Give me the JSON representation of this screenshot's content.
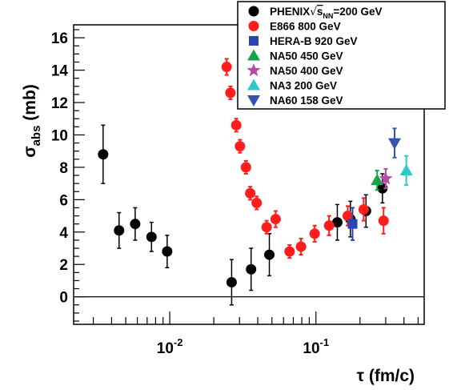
{
  "chart_data": {
    "type": "scatter",
    "x_scale": "log",
    "xlim": [
      0.0022,
      0.55
    ],
    "ylim": [
      -1.7,
      16.8
    ],
    "grid": false,
    "legend_placement": "top-right",
    "zero_line": true,
    "ylabel": {
      "main": "σ",
      "sub": "abs",
      "rest": " (mb)"
    },
    "xlabel": "τ (fm/c)",
    "y_ticks": [
      "0",
      "2",
      "4",
      "6",
      "8",
      "10",
      "12",
      "14",
      "16"
    ],
    "y_tick_values": [
      0,
      2,
      4,
      6,
      8,
      10,
      12,
      14,
      16
    ],
    "x_ticks": [
      {
        "base": "10",
        "exp": "-2",
        "value": 0.01
      },
      {
        "base": "10",
        "exp": "-1",
        "value": 0.1
      }
    ],
    "series": [
      {
        "name": "PHENIX",
        "name_math_prefix": "√",
        "name_math_var": "s",
        "name_math_sub": "NN",
        "name_suffix": "=200 GeV",
        "marker": "circle",
        "color": "#000000",
        "error_color": "#000000",
        "points": [
          {
            "x": 0.0035,
            "y": 8.8,
            "err": 1.8
          },
          {
            "x": 0.0045,
            "y": 4.1,
            "err": 1.1
          },
          {
            "x": 0.0058,
            "y": 4.5,
            "err": 1.0
          },
          {
            "x": 0.0075,
            "y": 3.7,
            "err": 0.9
          },
          {
            "x": 0.0096,
            "y": 2.8,
            "err": 1.0
          },
          {
            "x": 0.0265,
            "y": 0.9,
            "err": 1.4
          },
          {
            "x": 0.036,
            "y": 1.7,
            "err": 1.3
          },
          {
            "x": 0.048,
            "y": 2.6,
            "err": 1.3
          },
          {
            "x": 0.14,
            "y": 4.6,
            "err": 1.1
          },
          {
            "x": 0.172,
            "y": 4.8,
            "err": 1.1
          },
          {
            "x": 0.22,
            "y": 5.3,
            "err": 1.0
          },
          {
            "x": 0.285,
            "y": 6.7,
            "err": 0.9
          }
        ]
      },
      {
        "name": "E866 800 GeV",
        "marker": "circle",
        "color": "#ff1c1c",
        "error_color": "#ff1c1c",
        "points": [
          {
            "x": 0.0245,
            "y": 14.2,
            "err": 0.5
          },
          {
            "x": 0.026,
            "y": 12.6,
            "err": 0.4
          },
          {
            "x": 0.0285,
            "y": 10.6,
            "err": 0.4
          },
          {
            "x": 0.0302,
            "y": 9.3,
            "err": 0.4
          },
          {
            "x": 0.0332,
            "y": 8.0,
            "err": 0.4
          },
          {
            "x": 0.0355,
            "y": 6.4,
            "err": 0.4
          },
          {
            "x": 0.0393,
            "y": 5.8,
            "err": 0.4
          },
          {
            "x": 0.046,
            "y": 4.3,
            "err": 0.4
          },
          {
            "x": 0.053,
            "y": 4.8,
            "err": 0.5
          },
          {
            "x": 0.066,
            "y": 2.8,
            "err": 0.4
          },
          {
            "x": 0.079,
            "y": 3.1,
            "err": 0.5
          },
          {
            "x": 0.098,
            "y": 3.9,
            "err": 0.5
          },
          {
            "x": 0.123,
            "y": 4.4,
            "err": 0.6
          },
          {
            "x": 0.165,
            "y": 5.0,
            "err": 0.6
          },
          {
            "x": 0.212,
            "y": 5.4,
            "err": 0.7
          },
          {
            "x": 0.29,
            "y": 4.7,
            "err": 0.8
          }
        ]
      },
      {
        "name": "HERA-B 920 GeV",
        "marker": "square",
        "color": "#2a44b8",
        "error_color": "#2a44b8",
        "points": [
          {
            "x": 0.178,
            "y": 4.5,
            "err": 1.0
          }
        ]
      },
      {
        "name": "NA50 450 GeV",
        "marker": "triangle-up",
        "color": "#16a34a",
        "error_color": "#16a34a",
        "points": [
          {
            "x": 0.262,
            "y": 7.2,
            "err": 0.6
          }
        ]
      },
      {
        "name": "NA50 400 GeV",
        "marker": "star",
        "color": "#b64aa6",
        "error_color": "#b64aa6",
        "points": [
          {
            "x": 0.3,
            "y": 7.3,
            "err": 0.6
          }
        ]
      },
      {
        "name": "NA3 200 GeV",
        "marker": "triangle-up",
        "color": "#2dc8c8",
        "error_color": "#2dc8c8",
        "points": [
          {
            "x": 0.415,
            "y": 7.8,
            "err": 0.9
          }
        ]
      },
      {
        "name": "NA60 158 GeV",
        "marker": "triangle-down",
        "color": "#3554b0",
        "error_color": "#3554b0",
        "points": [
          {
            "x": 0.345,
            "y": 9.5,
            "err": 0.9
          }
        ]
      }
    ]
  }
}
